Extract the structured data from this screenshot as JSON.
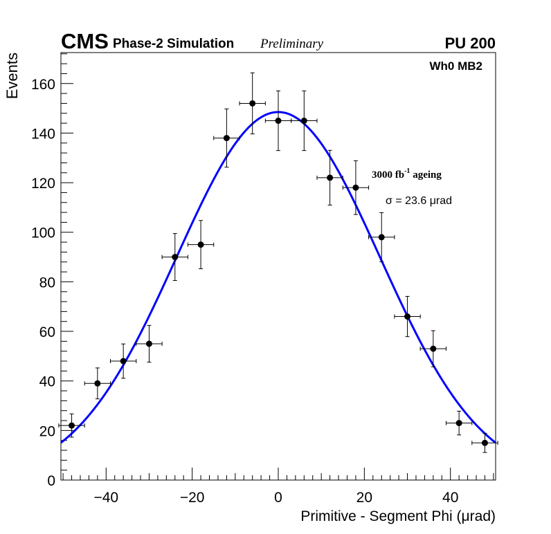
{
  "chart_data": {
    "type": "scatter",
    "experiment": "CMS",
    "simulation_label": "Phase-2 Simulation",
    "status_label": "Preliminary",
    "pileup_label": "PU 200",
    "chamber_label": "Wh0 MB2",
    "ageing_label": {
      "prefix": "3000 fb",
      "exponent": "-1",
      "suffix": " ageing"
    },
    "sigma_label": "σ = 23.6 μrad",
    "xlabel": "Primitive - Segment Phi (μrad)",
    "ylabel": "Events",
    "xlim": [
      -50.5,
      50.5
    ],
    "ylim": [
      0,
      172.5
    ],
    "x_ticks": [
      -40,
      -20,
      0,
      20,
      40
    ],
    "x_tick_labels": [
      "−40",
      "−20",
      "0",
      "20",
      "40"
    ],
    "y_ticks": [
      0,
      20,
      40,
      60,
      80,
      100,
      120,
      140,
      160
    ],
    "y_tick_labels": [
      "0",
      "20",
      "40",
      "60",
      "80",
      "100",
      "120",
      "140",
      "160"
    ],
    "bin_width": 6,
    "points": [
      {
        "x": -48,
        "y": 22
      },
      {
        "x": -42,
        "y": 39
      },
      {
        "x": -36,
        "y": 48
      },
      {
        "x": -30,
        "y": 55
      },
      {
        "x": -24,
        "y": 90
      },
      {
        "x": -18,
        "y": 95
      },
      {
        "x": -12,
        "y": 138
      },
      {
        "x": -6,
        "y": 152
      },
      {
        "x": 0,
        "y": 145
      },
      {
        "x": 6,
        "y": 145
      },
      {
        "x": 12,
        "y": 122
      },
      {
        "x": 18,
        "y": 118
      },
      {
        "x": 24,
        "y": 98
      },
      {
        "x": 30,
        "y": 66
      },
      {
        "x": 36,
        "y": 53
      },
      {
        "x": 42,
        "y": 23
      },
      {
        "x": 48,
        "y": 15
      }
    ],
    "fit": {
      "function": "gaussian",
      "amplitude": 148.5,
      "mean": 0,
      "sigma": 23.6,
      "color": "#0000ff"
    },
    "marker_color": "#000000"
  }
}
